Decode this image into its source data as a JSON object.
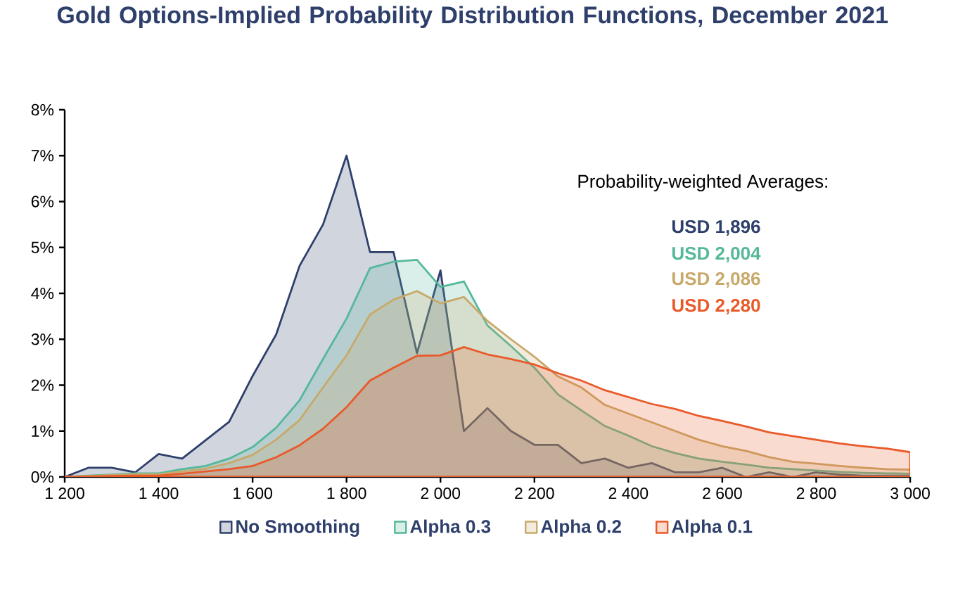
{
  "chart_data": {
    "type": "area",
    "title": "Gold Options-Implied Probability Distribution Functions, December 2021",
    "x": [
      1200,
      1250,
      1300,
      1350,
      1400,
      1450,
      1500,
      1550,
      1600,
      1650,
      1700,
      1750,
      1800,
      1850,
      1900,
      1950,
      2000,
      2050,
      2100,
      2150,
      2200,
      2250,
      2300,
      2350,
      2400,
      2450,
      2500,
      2550,
      2600,
      2650,
      2700,
      2750,
      2800,
      2850,
      2900,
      2950,
      3000
    ],
    "series": [
      {
        "name": "No Smoothing",
        "color": "#2e3f6b",
        "values": [
          0,
          0.2,
          0.2,
          0.1,
          0.5,
          0.4,
          0.8,
          1.2,
          2.2,
          3.1,
          4.6,
          5.5,
          7.0,
          4.9,
          4.9,
          2.7,
          4.5,
          1.0,
          1.5,
          1.0,
          0.7,
          0.7,
          0.3,
          0.4,
          0.2,
          0.3,
          0.1,
          0.1,
          0.2,
          0,
          0.1,
          0,
          0.1,
          0.05,
          0.03,
          0.03,
          0.03
        ]
      },
      {
        "name": "Alpha 0.3",
        "color": "#55b89a",
        "values": [
          0,
          0.03,
          0.05,
          0.08,
          0.08,
          0.17,
          0.24,
          0.4,
          0.65,
          1.07,
          1.67,
          2.57,
          3.45,
          4.55,
          4.69,
          4.73,
          4.14,
          4.26,
          3.3,
          2.85,
          2.38,
          1.8,
          1.45,
          1.11,
          0.9,
          0.67,
          0.52,
          0.4,
          0.33,
          0.27,
          0.2,
          0.17,
          0.14,
          0.11,
          0.09,
          0.08,
          0.07
        ]
      },
      {
        "name": "Alpha 0.2",
        "color": "#c8a96a",
        "values": [
          0,
          0.02,
          0.04,
          0.06,
          0.06,
          0.12,
          0.18,
          0.3,
          0.48,
          0.81,
          1.24,
          1.95,
          2.65,
          3.54,
          3.86,
          4.05,
          3.78,
          3.92,
          3.4,
          3.0,
          2.62,
          2.19,
          1.95,
          1.57,
          1.38,
          1.19,
          1.0,
          0.81,
          0.67,
          0.57,
          0.43,
          0.33,
          0.29,
          0.24,
          0.2,
          0.17,
          0.16
        ]
      },
      {
        "name": "Alpha 0.1",
        "color": "#e95a2a",
        "values": [
          0,
          0.01,
          0.02,
          0.03,
          0.03,
          0.07,
          0.12,
          0.17,
          0.24,
          0.43,
          0.69,
          1.05,
          1.52,
          2.1,
          2.38,
          2.64,
          2.65,
          2.83,
          2.67,
          2.57,
          2.45,
          2.26,
          2.1,
          1.89,
          1.74,
          1.59,
          1.48,
          1.33,
          1.22,
          1.1,
          0.97,
          0.89,
          0.81,
          0.73,
          0.67,
          0.62,
          0.54
        ]
      }
    ],
    "xlim": [
      1200,
      3000
    ],
    "ylim": [
      0,
      8
    ],
    "xticks": [
      {
        "value": 1200,
        "label": "1 200"
      },
      {
        "value": 1400,
        "label": "1 400"
      },
      {
        "value": 1600,
        "label": "1 600"
      },
      {
        "value": 1800,
        "label": "1 800"
      },
      {
        "value": 2000,
        "label": "2 000"
      },
      {
        "value": 2200,
        "label": "2 200"
      },
      {
        "value": 2400,
        "label": "2 400"
      },
      {
        "value": 2600,
        "label": "2 600"
      },
      {
        "value": 2800,
        "label": "2 800"
      },
      {
        "value": 3000,
        "label": "3 000"
      }
    ],
    "yticks": [
      {
        "value": 0,
        "label": "0%"
      },
      {
        "value": 1,
        "label": "1%"
      },
      {
        "value": 2,
        "label": "2%"
      },
      {
        "value": 3,
        "label": "3%"
      },
      {
        "value": 4,
        "label": "4%"
      },
      {
        "value": 5,
        "label": "5%"
      },
      {
        "value": 6,
        "label": "6%"
      },
      {
        "value": 7,
        "label": "7%"
      },
      {
        "value": 8,
        "label": "8%"
      }
    ],
    "legend": "bottom",
    "annotations": [
      "Probability-weighted Averages:",
      "USD 1,896",
      "USD 2,004",
      "USD 2,086",
      "USD 2,280"
    ]
  }
}
